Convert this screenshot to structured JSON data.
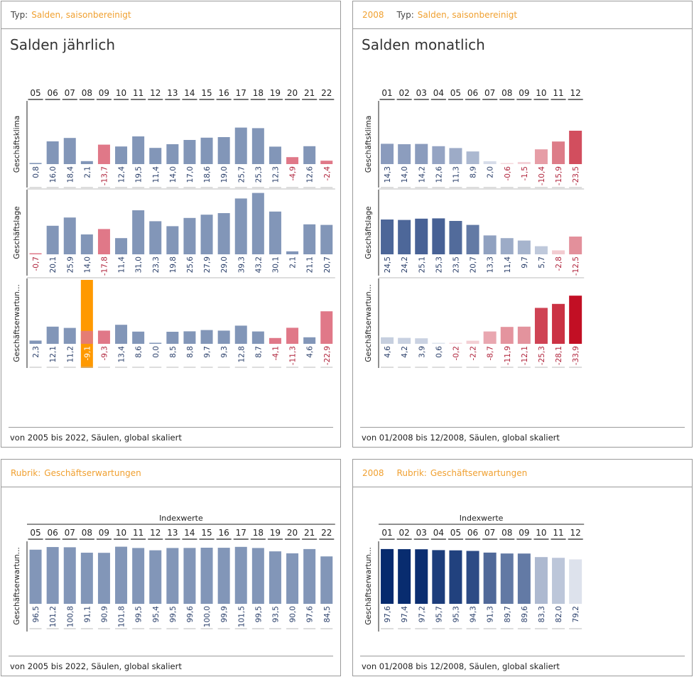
{
  "panels": {
    "p1": {
      "type_label": "Typ:",
      "type_value": "Salden, saisonbereinigt",
      "title": "Salden jährlich",
      "footer": "von 2005 bis 2022, Säulen, global skaliert"
    },
    "p2": {
      "year": "2008",
      "type_label": "Typ:",
      "type_value": "Salden, saisonbereinigt",
      "title": "Salden monatlich",
      "footer": "von 01/2008 bis 12/2008, Säulen, global skaliert"
    },
    "p3": {
      "rubric_label": "Rubrik:",
      "rubric_value": "Geschäftserwartungen",
      "footer": "von 2005 bis 2022, Säulen, global skaliert"
    },
    "p4": {
      "year": "2008",
      "rubric_label": "Rubrik:",
      "rubric_value": "Geschäftserwartungen",
      "footer": "von 01/2008 bis 12/2008, Säulen, global skaliert"
    }
  },
  "colors": {
    "accent": "#f0a030",
    "positive_bar": "#8296b8",
    "negative_bar": "#e07888",
    "highlight": "#ff9900",
    "frame": "#9a9a9a",
    "positive_label": "#2a3f6a",
    "negative_label": "#b0243c"
  },
  "chart_data": [
    {
      "id": "annual_balances",
      "type": "bar",
      "title": "Salden jährlich",
      "categories": [
        "05",
        "06",
        "07",
        "08",
        "09",
        "10",
        "11",
        "12",
        "13",
        "14",
        "15",
        "16",
        "17",
        "18",
        "19",
        "20",
        "21",
        "22"
      ],
      "series": [
        {
          "name": "Geschäftsklima",
          "values": [
            0.8,
            16.0,
            18.4,
            2.1,
            -13.7,
            12.4,
            19.5,
            11.4,
            14.0,
            17.0,
            18.6,
            19.0,
            25.7,
            25.3,
            12.3,
            -4.9,
            12.6,
            -2.4
          ],
          "labels": [
            "0,8",
            "16,0",
            "18,4",
            "2,1",
            "-13,7",
            "12,4",
            "19,5",
            "11,4",
            "14,0",
            "17,0",
            "18,6",
            "19,0",
            "25,7",
            "25,3",
            "12,3",
            "-4,9",
            "12,6",
            "-2,4"
          ]
        },
        {
          "name": "Geschäftslage",
          "values": [
            -0.7,
            20.1,
            25.9,
            14.0,
            -17.8,
            11.4,
            31.0,
            23.3,
            19.8,
            25.6,
            27.9,
            29.0,
            39.3,
            43.2,
            30.1,
            2.1,
            21.1,
            20.7
          ],
          "labels": [
            "-0,7",
            "20,1",
            "25,9",
            "14,0",
            "-17,8",
            "11,4",
            "31,0",
            "23,3",
            "19,8",
            "25,6",
            "27,9",
            "29,0",
            "39,3",
            "43,2",
            "30,1",
            "2,1",
            "21,1",
            "20,7"
          ]
        },
        {
          "name": "Geschäftserwartun...",
          "values": [
            2.3,
            12.1,
            11.2,
            -9.1,
            -9.3,
            13.4,
            8.6,
            0.0,
            8.5,
            8.8,
            9.7,
            9.3,
            12.8,
            8.7,
            -4.1,
            -11.3,
            4.6,
            -22.9
          ],
          "labels": [
            "2,3",
            "12,1",
            "11,2",
            "-9,1",
            "-9,3",
            "13,4",
            "8,6",
            "0,0",
            "8,5",
            "8,8",
            "9,7",
            "9,3",
            "12,8",
            "8,7",
            "-4,1",
            "-11,3",
            "4,6",
            "-22,9"
          ]
        }
      ],
      "highlight": {
        "series": 2,
        "category": "08"
      }
    },
    {
      "id": "monthly_balances_2008",
      "type": "bar",
      "title": "Salden monatlich",
      "categories": [
        "01",
        "02",
        "03",
        "04",
        "05",
        "06",
        "07",
        "08",
        "09",
        "10",
        "11",
        "12"
      ],
      "series": [
        {
          "name": "Geschäftsklima",
          "values": [
            14.3,
            14.0,
            14.2,
            12.6,
            11.3,
            8.9,
            2.0,
            -0.6,
            -1.5,
            -10.4,
            -15.9,
            -23.5
          ],
          "labels": [
            "14,3",
            "14,0",
            "14,2",
            "12,6",
            "11,3",
            "8,9",
            "2,0",
            "-0,6",
            "-1,5",
            "-10,4",
            "-15,9",
            "-23,5"
          ]
        },
        {
          "name": "Geschäftslage",
          "values": [
            24.5,
            24.2,
            25.1,
            25.3,
            23.5,
            20.7,
            13.3,
            11.4,
            9.7,
            5.7,
            -2.8,
            -12.5
          ],
          "labels": [
            "24,5",
            "24,2",
            "25,1",
            "25,3",
            "23,5",
            "20,7",
            "13,3",
            "11,4",
            "9,7",
            "5,7",
            "-2,8",
            "-12,5"
          ]
        },
        {
          "name": "Geschäftserwartun...",
          "values": [
            4.6,
            4.2,
            3.9,
            0.6,
            -0.2,
            -2.2,
            -8.7,
            -11.9,
            -12.1,
            -25.3,
            -28.1,
            -33.9
          ],
          "labels": [
            "4,6",
            "4,2",
            "3,9",
            "0,6",
            "-0,2",
            "-2,2",
            "-8,7",
            "-11,9",
            "-12,1",
            "-25,3",
            "-28,1",
            "-33,9"
          ]
        }
      ]
    },
    {
      "id": "annual_index",
      "type": "bar",
      "title": "Indexwerte",
      "categories": [
        "05",
        "06",
        "07",
        "08",
        "09",
        "10",
        "11",
        "12",
        "13",
        "14",
        "15",
        "16",
        "17",
        "18",
        "19",
        "20",
        "21",
        "22"
      ],
      "series": [
        {
          "name": "Geschäftserwartun...",
          "values": [
            96.5,
            101.2,
            100.8,
            91.1,
            90.9,
            101.8,
            99.5,
            95.4,
            99.5,
            99.6,
            100.0,
            99.9,
            101.5,
            99.5,
            93.5,
            90.0,
            97.6,
            84.5
          ],
          "labels": [
            "96,5",
            "101,2",
            "100,8",
            "91,1",
            "90,9",
            "101,8",
            "99,5",
            "95,4",
            "99,5",
            "99,6",
            "100,0",
            "99,9",
            "101,5",
            "99,5",
            "93,5",
            "90,0",
            "97,6",
            "84,5"
          ]
        }
      ]
    },
    {
      "id": "monthly_index_2008",
      "type": "bar",
      "title": "Indexwerte",
      "categories": [
        "01",
        "02",
        "03",
        "04",
        "05",
        "06",
        "07",
        "08",
        "09",
        "10",
        "11",
        "12"
      ],
      "series": [
        {
          "name": "Geschäftserwartun...",
          "values": [
            97.6,
            97.4,
            97.2,
            95.7,
            95.3,
            94.3,
            91.3,
            89.7,
            89.6,
            83.3,
            82.0,
            79.2
          ],
          "labels": [
            "97,6",
            "97,4",
            "97,2",
            "95,7",
            "95,3",
            "94,3",
            "91,3",
            "89,7",
            "89,6",
            "83,3",
            "82,0",
            "79,2"
          ]
        }
      ]
    }
  ]
}
